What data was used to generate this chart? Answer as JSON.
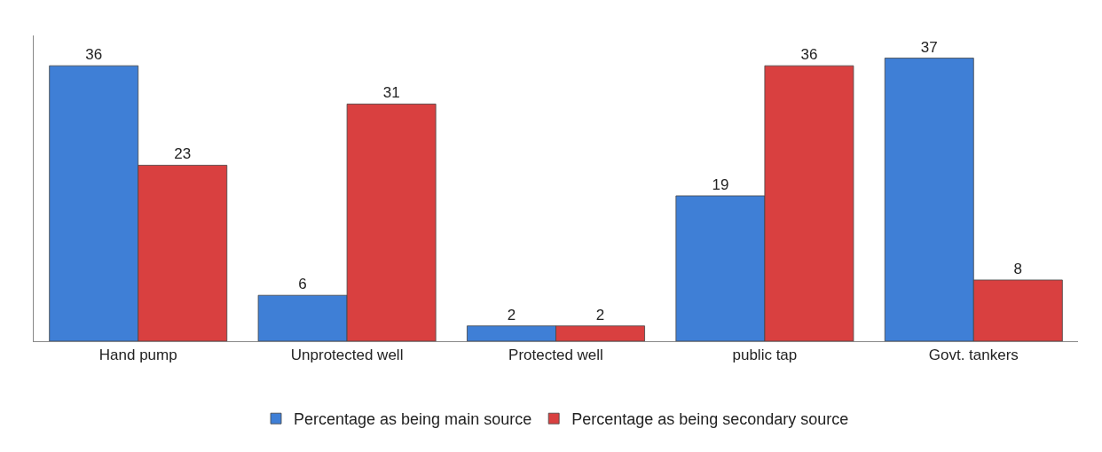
{
  "chart_data": {
    "type": "bar",
    "categories": [
      "Hand pump",
      "Unprotected well",
      "Protected well",
      "public tap",
      "Govt. tankers"
    ],
    "series": [
      {
        "name": "Percentage as being main source",
        "color": "#3f7fd6",
        "values": [
          36,
          6,
          2,
          19,
          37
        ]
      },
      {
        "name": "Percentage as being secondary source",
        "color": "#d94040",
        "values": [
          23,
          31,
          2,
          36,
          8
        ]
      }
    ],
    "data_labels": true,
    "legend": "bottom"
  }
}
